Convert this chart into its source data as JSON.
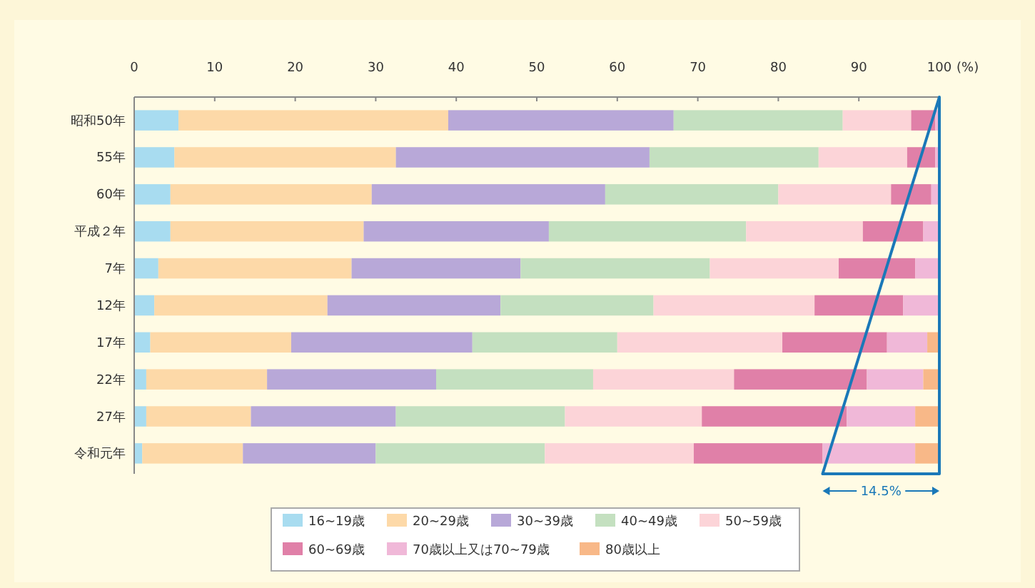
{
  "chart_data": {
    "type": "bar",
    "orientation": "horizontal",
    "stacked": true,
    "xlabel": "(%)",
    "categories": [
      "昭和50年",
      "55年",
      "60年",
      "平成２年",
      "7年",
      "12年",
      "17年",
      "22年",
      "27年",
      "令和元年"
    ],
    "series": [
      {
        "name": "16~19歳",
        "color": "#a8dcf0",
        "values": [
          5.5,
          5,
          4.5,
          4.5,
          3,
          2.5,
          2,
          1.5,
          1.5,
          1
        ]
      },
      {
        "name": "20~29歳",
        "color": "#fdd9a8",
        "values": [
          33.5,
          27.5,
          25,
          24,
          24,
          21.5,
          17.5,
          15,
          13,
          12.5
        ]
      },
      {
        "name": "30~39歳",
        "color": "#b8a8d8",
        "values": [
          28,
          31.5,
          29,
          23,
          21,
          21.5,
          22.5,
          21,
          18,
          16.5
        ]
      },
      {
        "name": "40~49歳",
        "color": "#c4e0c0",
        "values": [
          21,
          21,
          21.5,
          24.5,
          23.5,
          19,
          18,
          19.5,
          21,
          21
        ]
      },
      {
        "name": "50~59歳",
        "color": "#fcd4d8",
        "values": [
          8.5,
          11,
          14,
          14.5,
          16,
          20,
          20.5,
          17.5,
          17,
          18.5
        ]
      },
      {
        "name": "60~69歳",
        "color": "#e080a8",
        "values": [
          3,
          3.5,
          5,
          7.5,
          9.5,
          11,
          13,
          16.5,
          18,
          16
        ]
      },
      {
        "name": "70歳以上又は70~79歳",
        "color": "#f0b8d8",
        "values": [
          0.5,
          0.5,
          1,
          2,
          3,
          4.5,
          5,
          7,
          8.5,
          11.5
        ]
      },
      {
        "name": "80歳以上",
        "color": "#f8b888",
        "values": [
          0,
          0,
          0,
          0,
          0,
          0,
          1.5,
          2,
          3,
          3
        ]
      }
    ],
    "xlim": [
      0,
      100
    ],
    "xticks": [
      0,
      10,
      20,
      30,
      40,
      50,
      60,
      70,
      80,
      90,
      100
    ],
    "legend": "bottom",
    "annotations": [
      "14.5%"
    ]
  }
}
